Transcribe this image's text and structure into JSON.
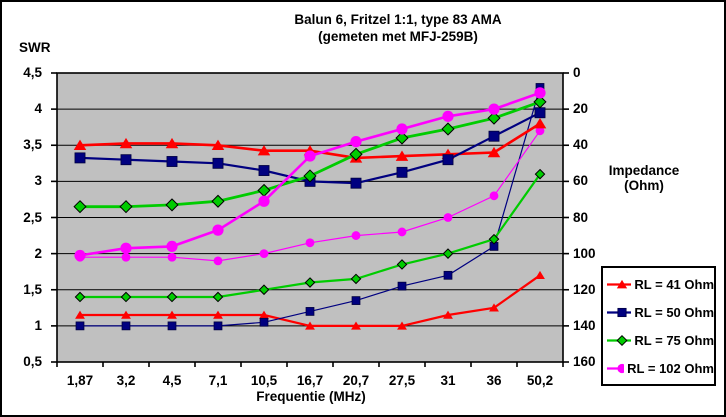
{
  "title": {
    "line1": "Balun 6, Fritzel 1:1, type 83 AMA",
    "line2": "(gemeten met MFJ-259B)"
  },
  "axis_labels": {
    "left": "SWR",
    "right_line1": "Impedance",
    "right_line2": "(Ohm)",
    "x": "Frequentie (MHz)"
  },
  "chart_data": {
    "type": "line",
    "title": "Balun 6, Fritzel 1:1, type 83 AMA (gemeten met MFJ-259B)",
    "xlabel": "Frequentie (MHz)",
    "x_categories": [
      "1,87",
      "3,2",
      "4,5",
      "7,1",
      "10,5",
      "16,7",
      "20,7",
      "27,5",
      "31",
      "36",
      "50,2"
    ],
    "left_axis": {
      "label": "SWR",
      "min": 0.5,
      "max": 4.5,
      "tick_step": 0.5,
      "tick_labels_top_to_bottom": [
        "4,5",
        "4",
        "3,5",
        "3",
        "2,5",
        "2",
        "1,5",
        "1",
        "0,5"
      ]
    },
    "right_axis": {
      "label": "Impedance (Ohm)",
      "min": 0,
      "max": 160,
      "tick_step": 20,
      "inverted": true,
      "tick_labels_top_to_bottom": [
        "0",
        "20",
        "40",
        "60",
        "80",
        "100",
        "120",
        "140",
        "160"
      ]
    },
    "grid": true,
    "legend_position": "right",
    "plot_bg": "#C0C0C0",
    "grid_color": "#000000",
    "series": [
      {
        "label": "RL = 41 Ohm",
        "color": "#FF0000",
        "marker": "triangle",
        "swr": [
          1.15,
          1.15,
          1.15,
          1.15,
          1.15,
          1.0,
          1.0,
          1.0,
          1.15,
          1.25,
          1.7
        ],
        "impedance_ohm": [
          40,
          39,
          39,
          40,
          43,
          43,
          47,
          46,
          45,
          44,
          28
        ]
      },
      {
        "label": "RL = 50 Ohm",
        "color": "#000080",
        "marker": "square",
        "swr": [
          1.0,
          1.0,
          1.0,
          1.0,
          1.05,
          1.2,
          1.35,
          1.55,
          1.7,
          2.1,
          4.3
        ],
        "impedance_ohm": [
          47,
          48,
          49,
          50,
          54,
          60,
          61,
          55,
          48,
          35,
          22
        ]
      },
      {
        "label": "RL = 75 Ohm",
        "color": "#00CC00",
        "marker": "diamond",
        "swr": [
          1.4,
          1.4,
          1.4,
          1.4,
          1.5,
          1.6,
          1.65,
          1.85,
          2.0,
          2.2,
          3.1
        ],
        "impedance_ohm": [
          74,
          74,
          73,
          71,
          65,
          57,
          45,
          36,
          31,
          25,
          16
        ]
      },
      {
        "label": "RL = 102 Ohm",
        "color": "#FF00FF",
        "marker": "circle",
        "swr": [
          1.95,
          1.95,
          1.95,
          1.9,
          2.0,
          2.15,
          2.25,
          2.3,
          2.5,
          2.8,
          3.7
        ],
        "impedance_ohm": [
          101,
          97,
          96,
          87,
          71,
          46,
          38,
          31,
          24,
          20,
          11
        ]
      }
    ]
  }
}
